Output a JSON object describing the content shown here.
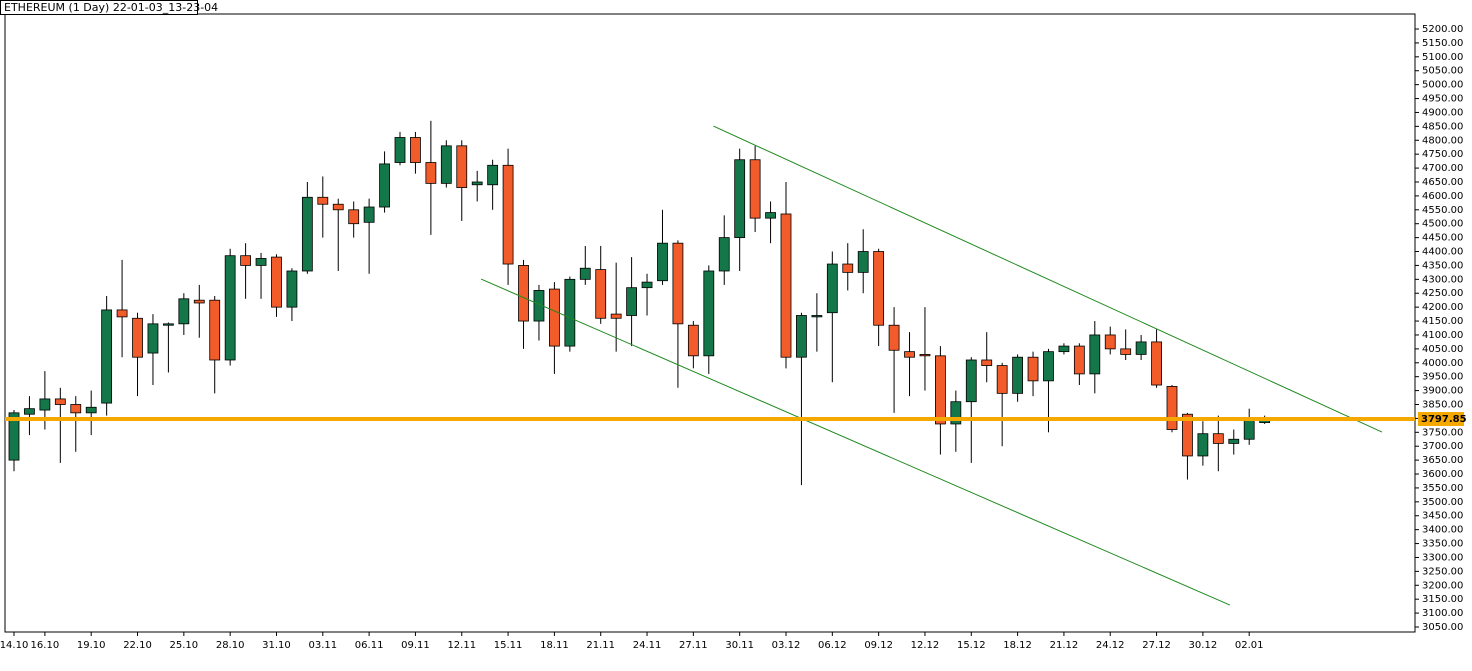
{
  "chart_data": {
    "type": "candlestick",
    "title": "ETHEREUM (1 Day) 22-01-03_13-23-04",
    "categories": [
      "14.10",
      null,
      "16.10",
      null,
      null,
      "19.10",
      null,
      null,
      "22.10",
      null,
      null,
      "25.10",
      null,
      null,
      "28.10",
      null,
      null,
      "31.10",
      null,
      null,
      "03.11",
      null,
      null,
      "06.11",
      null,
      null,
      "09.11",
      null,
      null,
      "12.11",
      null,
      null,
      "15.11",
      null,
      null,
      "18.11",
      null,
      null,
      "21.11",
      null,
      null,
      "24.11",
      null,
      null,
      "27.11",
      null,
      null,
      "30.11",
      null,
      null,
      "03.12",
      null,
      null,
      "06.12",
      null,
      null,
      "09.12",
      null,
      null,
      "12.12",
      null,
      null,
      "15.12",
      null,
      null,
      "18.12",
      null,
      null,
      "21.12",
      null,
      null,
      "24.12",
      null,
      null,
      "27.12",
      null,
      null,
      "30.12",
      null,
      null,
      "02.01",
      null
    ],
    "open": [
      3650,
      3815,
      3830,
      3870,
      3850,
      3820,
      3855,
      4190,
      4160,
      4035,
      4135,
      4140,
      4225,
      4225,
      4010,
      4385,
      4350,
      4380,
      4200,
      4330,
      4595,
      4570,
      4550,
      4505,
      4560,
      4720,
      4810,
      4720,
      4645,
      4780,
      4640,
      4640,
      4710,
      4350,
      4150,
      4265,
      4060,
      4300,
      4335,
      4175,
      4170,
      4270,
      4295,
      4430,
      4135,
      4025,
      4330,
      4450,
      4730,
      4520,
      4535,
      4020,
      4165,
      4180,
      4355,
      4325,
      4400,
      4135,
      4040,
      4030,
      4025,
      3780,
      3860,
      4010,
      3990,
      3890,
      4020,
      3935,
      4040,
      4060,
      3960,
      4100,
      4050,
      4030,
      4075,
      3915,
      3815,
      3665,
      3745,
      3710,
      3725,
      3785
    ],
    "high": [
      3830,
      3880,
      3970,
      3910,
      3880,
      3900,
      4240,
      4370,
      4180,
      4175,
      4145,
      4250,
      4280,
      4240,
      4410,
      4430,
      4395,
      4390,
      4340,
      4650,
      4670,
      4590,
      4580,
      4590,
      4760,
      4830,
      4830,
      4870,
      4800,
      4800,
      4690,
      4730,
      4770,
      4370,
      4280,
      4290,
      4310,
      4420,
      4420,
      4360,
      4380,
      4320,
      4550,
      4440,
      4150,
      4350,
      4530,
      4770,
      4780,
      4580,
      4650,
      4180,
      4250,
      4400,
      4430,
      4480,
      4410,
      4200,
      4110,
      4200,
      4060,
      3900,
      4020,
      4110,
      4000,
      4030,
      4040,
      4050,
      4070,
      4070,
      4150,
      4130,
      4120,
      4100,
      4120,
      3920,
      3820,
      3790,
      3810,
      3760,
      3835,
      3810
    ],
    "low": [
      3610,
      3740,
      3760,
      3640,
      3680,
      3740,
      3810,
      4020,
      3880,
      3920,
      3965,
      4100,
      4090,
      3890,
      3990,
      4230,
      4230,
      4165,
      4150,
      4320,
      4450,
      4330,
      4450,
      4320,
      4540,
      4710,
      4680,
      4460,
      4630,
      4510,
      4580,
      4550,
      4280,
      4050,
      4080,
      3960,
      4040,
      4280,
      4140,
      4040,
      4060,
      4170,
      4280,
      3910,
      3980,
      3960,
      4280,
      4330,
      4470,
      4430,
      3980,
      3560,
      4040,
      3930,
      4260,
      4250,
      4060,
      3820,
      3880,
      3900,
      3670,
      3680,
      3640,
      3930,
      3700,
      3860,
      3880,
      3750,
      4030,
      3920,
      3890,
      4030,
      4010,
      4010,
      3910,
      3750,
      3580,
      3630,
      3610,
      3670,
      3705,
      3780
    ],
    "close": [
      3820,
      3835,
      3870,
      3850,
      3820,
      3840,
      4190,
      4165,
      4020,
      4140,
      4140,
      4230,
      4215,
      4010,
      4385,
      4350,
      4375,
      4200,
      4330,
      4595,
      4570,
      4550,
      4500,
      4560,
      4715,
      4810,
      4720,
      4645,
      4780,
      4630,
      4650,
      4710,
      4355,
      4150,
      4260,
      4060,
      4300,
      4340,
      4160,
      4160,
      4270,
      4290,
      4430,
      4140,
      4025,
      4330,
      4450,
      4730,
      4520,
      4540,
      4020,
      4170,
      4170,
      4355,
      4325,
      4400,
      4135,
      4045,
      4020,
      4025,
      3780,
      3860,
      4010,
      3990,
      3890,
      4020,
      3935,
      4040,
      4060,
      3960,
      4100,
      4050,
      4030,
      4075,
      3920,
      3760,
      3665,
      3745,
      3710,
      3725,
      3795,
      3798
    ],
    "up_color": "#13774a",
    "down_color": "#f25c2a",
    "ylim": [
      3032,
      5254
    ],
    "yticks": [
      {
        "value": 3050,
        "label": "3050.00"
      },
      {
        "value": 3100,
        "label": "3100.00"
      },
      {
        "value": 3150,
        "label": "3150.00"
      },
      {
        "value": 3200,
        "label": "3200.00"
      },
      {
        "value": 3250,
        "label": "3250.00"
      },
      {
        "value": 3300,
        "label": "3300.00"
      },
      {
        "value": 3350,
        "label": "3350.00"
      },
      {
        "value": 3400,
        "label": "3400.00"
      },
      {
        "value": 3450,
        "label": "3450.00"
      },
      {
        "value": 3500,
        "label": "3500.00"
      },
      {
        "value": 3550,
        "label": "3550.00"
      },
      {
        "value": 3600,
        "label": "3600.00"
      },
      {
        "value": 3650,
        "label": "3650.00"
      },
      {
        "value": 3700,
        "label": "3700.00"
      },
      {
        "value": 3750,
        "label": "3750.00"
      },
      {
        "value": 3800,
        "label": "3800.00"
      },
      {
        "value": 3850,
        "label": "3850.00"
      },
      {
        "value": 3900,
        "label": "3900.00"
      },
      {
        "value": 3950,
        "label": "3950.00"
      },
      {
        "value": 4000,
        "label": "4000.00"
      },
      {
        "value": 4050,
        "label": "4050.00"
      },
      {
        "value": 4100,
        "label": "4100.00"
      },
      {
        "value": 4150,
        "label": "4150.00"
      },
      {
        "value": 4200,
        "label": "4200.00"
      },
      {
        "value": 4250,
        "label": "4250.00"
      },
      {
        "value": 4300,
        "label": "4300.00"
      },
      {
        "value": 4350,
        "label": "4350.00"
      },
      {
        "value": 4400,
        "label": "4400.00"
      },
      {
        "value": 4450,
        "label": "4450.00"
      },
      {
        "value": 4500,
        "label": "4500.00"
      },
      {
        "value": 4550,
        "label": "4550.00"
      },
      {
        "value": 4600,
        "label": "4600.00"
      },
      {
        "value": 4650,
        "label": "4650.00"
      },
      {
        "value": 4700,
        "label": "4700.00"
      },
      {
        "value": 4750,
        "label": "4750.00"
      },
      {
        "value": 4800,
        "label": "4800.00"
      },
      {
        "value": 4850,
        "label": "4850.00"
      },
      {
        "value": 4900,
        "label": "4900.00"
      },
      {
        "value": 4950,
        "label": "4950.00"
      },
      {
        "value": 5000,
        "label": "5000.00"
      },
      {
        "value": 5050,
        "label": "5050.00"
      },
      {
        "value": 5100,
        "label": "5100.00"
      },
      {
        "value": 5150,
        "label": "5150.00"
      },
      {
        "value": 5200,
        "label": "5200.00"
      }
    ],
    "hline": {
      "value": 3797.85,
      "color": "#f5a800"
    },
    "trendlines": [
      {
        "start": [
          45.3,
          4851
        ],
        "end": [
          88.6,
          3751
        ],
        "color": "#1f8a1f"
      },
      {
        "start": [
          30.25,
          4301
        ],
        "end": [
          78.75,
          3129
        ],
        "color": "#1f8a1f"
      }
    ],
    "grid": false
  }
}
